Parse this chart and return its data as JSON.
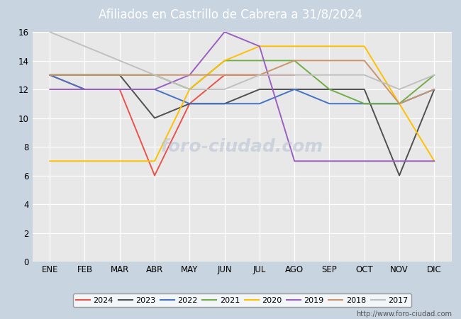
{
  "title": "Afiliados en Castrillo de Cabrera a 31/8/2024",
  "title_color": "#ffffff",
  "title_bg_color": "#4070b0",
  "months": [
    "ENE",
    "FEB",
    "MAR",
    "ABR",
    "MAY",
    "JUN",
    "JUL",
    "AGO",
    "SEP",
    "OCT",
    "NOV",
    "DIC"
  ],
  "series": {
    "2024": {
      "color": "#e8534a",
      "data": [
        13,
        12,
        12,
        6,
        11,
        13,
        13,
        13,
        null,
        null,
        null,
        null
      ]
    },
    "2023": {
      "color": "#505050",
      "data": [
        13,
        13,
        13,
        10,
        11,
        11,
        12,
        12,
        12,
        12,
        6,
        12
      ]
    },
    "2022": {
      "color": "#4472c4",
      "data": [
        13,
        12,
        12,
        12,
        11,
        11,
        11,
        12,
        11,
        11,
        11,
        12
      ]
    },
    "2021": {
      "color": "#70ad47",
      "data": [
        13,
        13,
        13,
        13,
        12,
        14,
        14,
        14,
        12,
        11,
        11,
        13
      ]
    },
    "2020": {
      "color": "#ffc000",
      "data": [
        7,
        7,
        7,
        7,
        12,
        14,
        15,
        15,
        15,
        15,
        11,
        7
      ]
    },
    "2019": {
      "color": "#9b5fc0",
      "data": [
        12,
        12,
        12,
        12,
        13,
        16,
        15,
        7,
        7,
        7,
        7,
        7
      ]
    },
    "2018": {
      "color": "#c9956c",
      "data": [
        13,
        13,
        13,
        13,
        13,
        13,
        13,
        14,
        14,
        14,
        11,
        12
      ]
    },
    "2017": {
      "color": "#c0c0c0",
      "data": [
        16,
        15,
        14,
        13,
        12,
        12,
        13,
        13,
        13,
        13,
        12,
        13
      ]
    }
  },
  "ylim": [
    0,
    16
  ],
  "yticks": [
    0,
    2,
    4,
    6,
    8,
    10,
    12,
    14,
    16
  ],
  "plot_bg_color": "#e8e8e8",
  "grid_color": "#ffffff",
  "footer_text": "http://www.foro-ciudad.com",
  "legend_order": [
    "2024",
    "2023",
    "2022",
    "2021",
    "2020",
    "2019",
    "2018",
    "2017"
  ]
}
